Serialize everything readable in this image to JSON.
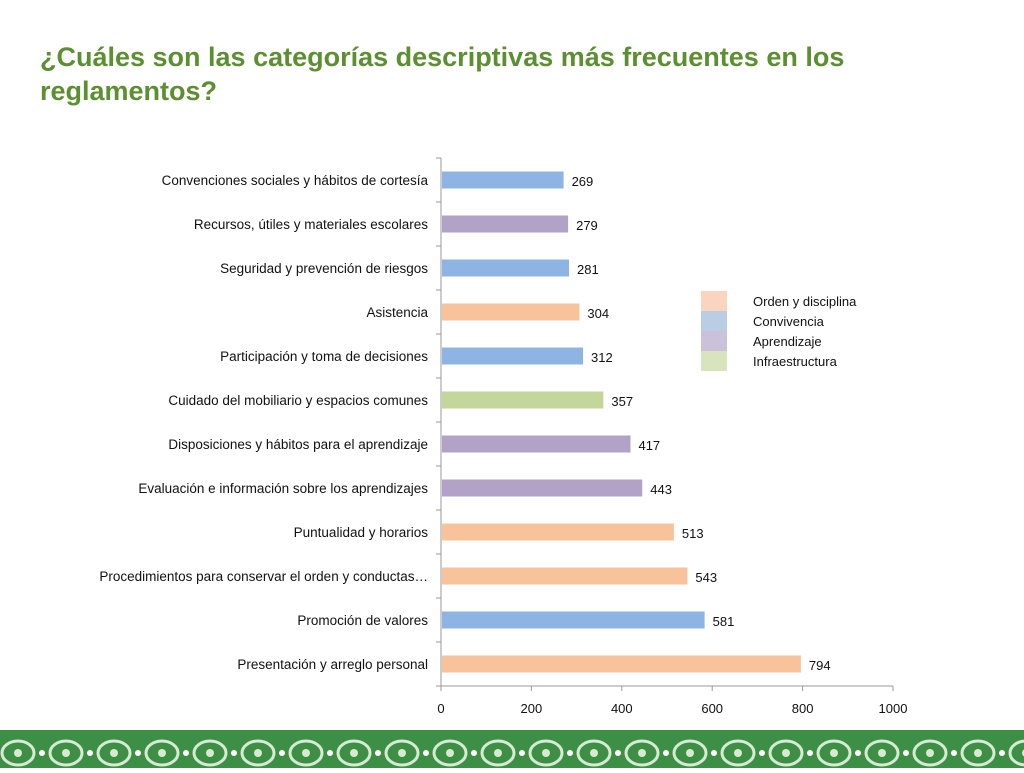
{
  "title": "¿Cuáles son las categorías descriptivas más frecuentes en los reglamentos?",
  "chart_data": {
    "type": "bar",
    "orientation": "horizontal",
    "categories": [
      "Convenciones sociales y hábitos de cortesía",
      "Recursos, útiles y materiales escolares",
      "Seguridad y prevención de riesgos",
      "Asistencia",
      "Participación y toma de decisiones",
      "Cuidado del mobiliario y espacios comunes",
      "Disposiciones y hábitos para el aprendizaje",
      "Evaluación e información sobre los aprendizajes",
      "Puntualidad y horarios",
      "Procedimientos para conservar el orden y conductas…",
      "Promoción de valores",
      "Presentación y arreglo personal"
    ],
    "values": [
      269,
      279,
      281,
      304,
      312,
      357,
      417,
      443,
      513,
      543,
      581,
      794
    ],
    "groups": [
      "Convivencia",
      "Aprendizaje",
      "Convivencia",
      "Orden y disciplina",
      "Convivencia",
      "Infraestructura",
      "Aprendizaje",
      "Aprendizaje",
      "Orden y disciplina",
      "Orden y disciplina",
      "Convivencia",
      "Orden y disciplina"
    ],
    "legend": [
      {
        "name": "Orden y disciplina",
        "color": "#f8c39a"
      },
      {
        "name": "Convivencia",
        "color": "#8eb4e3"
      },
      {
        "name": "Aprendizaje",
        "color": "#b3a2c7"
      },
      {
        "name": "Infraestructura",
        "color": "#c4d79b"
      }
    ],
    "legend_swatch_colors": [
      "#f9d5c0",
      "#b9cde5",
      "#ccc1da",
      "#d7e4bd"
    ],
    "xlim": [
      0,
      1000
    ],
    "xticks": [
      0,
      200,
      400,
      600,
      800,
      1000
    ],
    "grid": false,
    "legend_position": "right"
  },
  "colors": {
    "title": "#5b8f2f",
    "footer": "#3c8f44"
  }
}
